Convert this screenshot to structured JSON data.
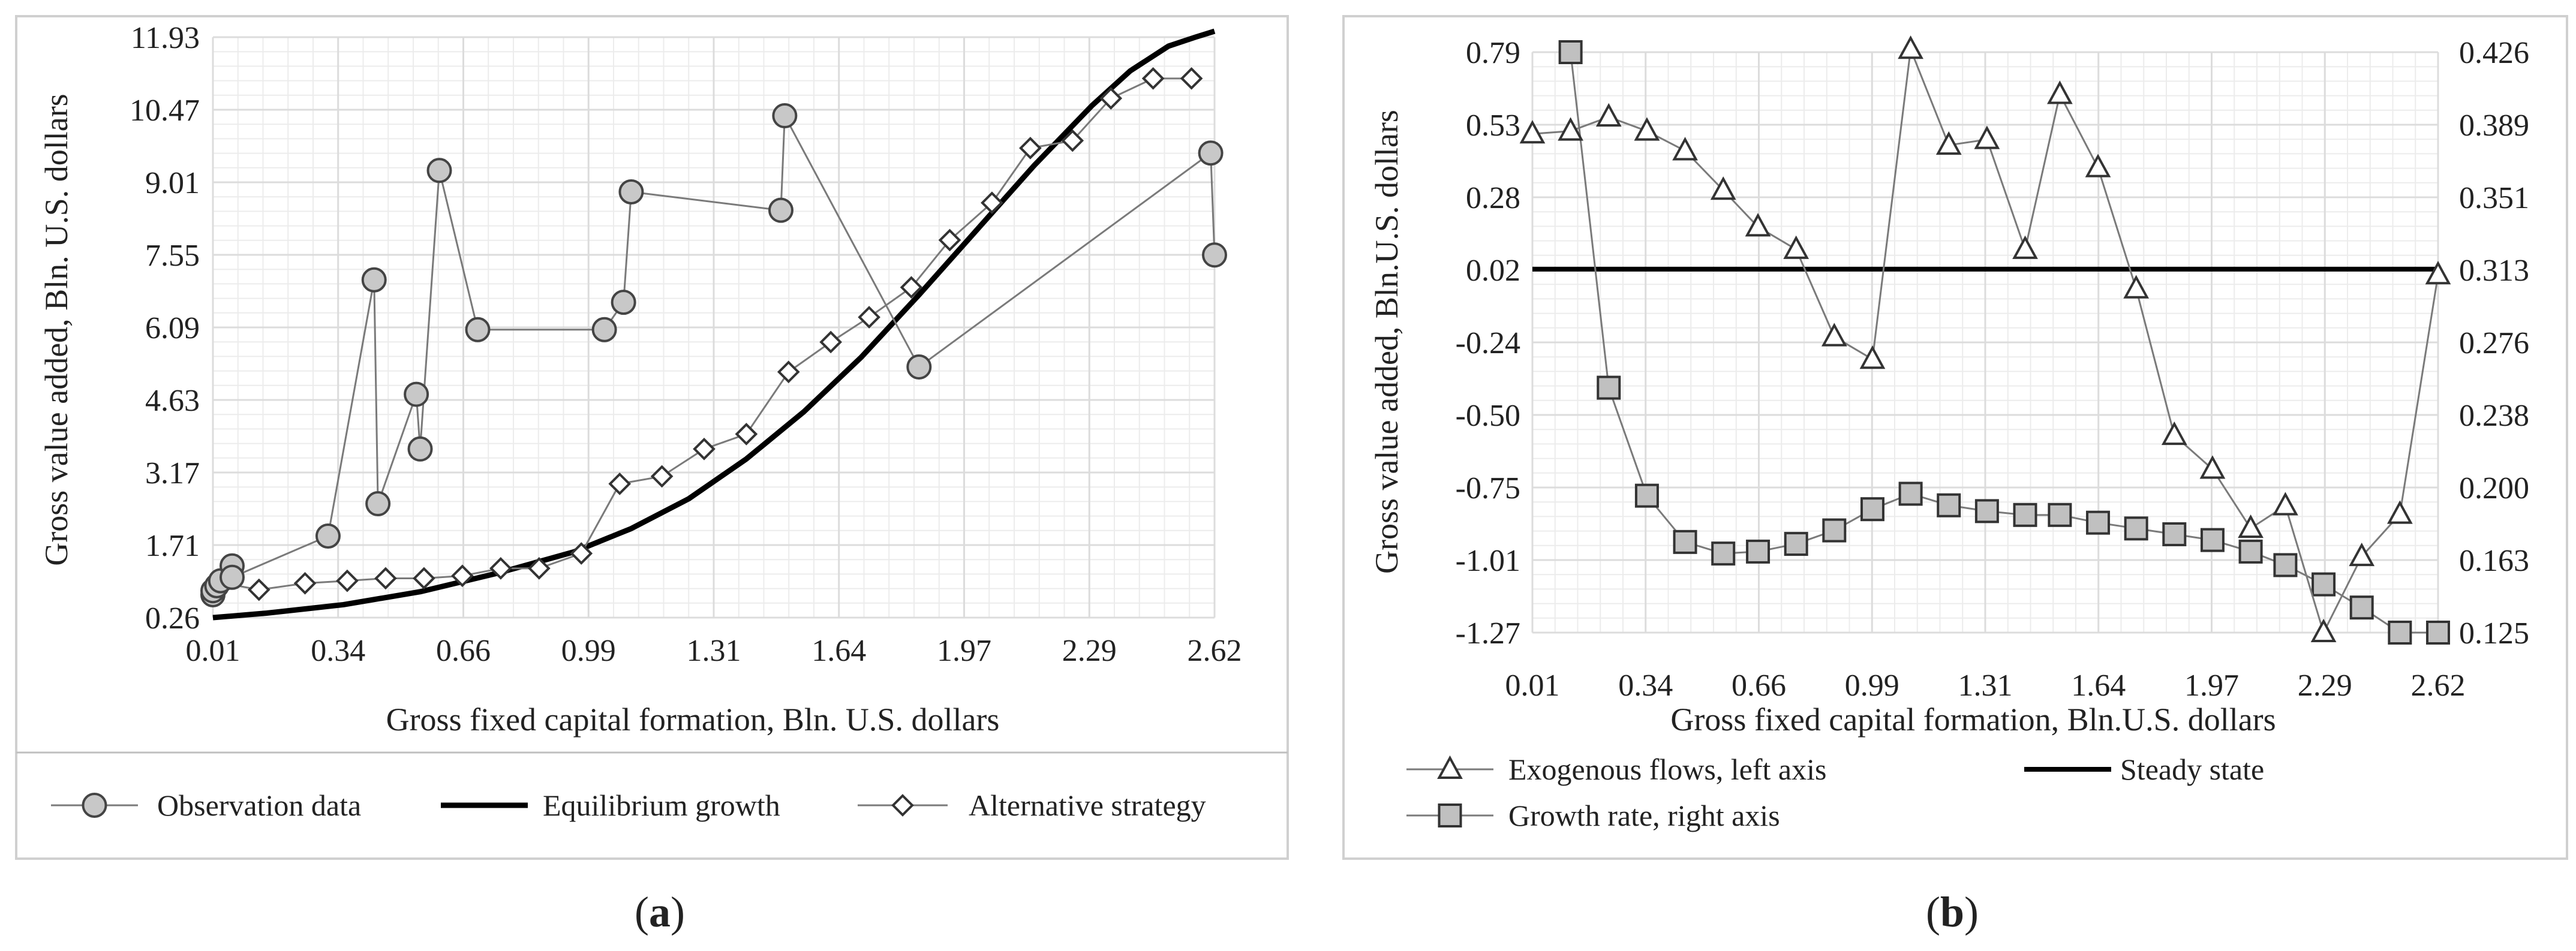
{
  "figure": {
    "caption_a_open": "(",
    "caption_a_letter": "a",
    "caption_a_close": ")",
    "caption_b_open": "(",
    "caption_b_letter": "b",
    "caption_b_close": ")"
  },
  "chart_data": [
    {
      "id": "a",
      "type": "line",
      "title": "",
      "xlabel": "Gross fixed capital formation, Bln. U.S. dollars",
      "ylabel": "Gross value added, Bln. U.S. dollars",
      "x_ticks": [
        "0.01",
        "0.34",
        "0.66",
        "0.99",
        "1.31",
        "1.64",
        "1.97",
        "2.29",
        "2.62"
      ],
      "y_ticks": [
        "0.26",
        "1.71",
        "3.17",
        "4.63",
        "6.09",
        "7.55",
        "9.01",
        "10.47",
        "11.93"
      ],
      "xlim": [
        0.01,
        2.62
      ],
      "ylim": [
        0.26,
        11.93
      ],
      "legend_position": "bottom",
      "series": [
        {
          "name": "Observation data",
          "marker": "circle",
          "x": [
            0.01,
            0.01,
            0.02,
            0.03,
            0.06,
            0.06,
            0.31,
            0.43,
            0.44,
            0.54,
            0.55,
            0.6,
            0.7,
            1.03,
            1.08,
            1.1,
            1.49,
            1.5,
            1.85,
            2.61,
            2.62
          ],
          "y": [
            0.72,
            0.8,
            0.9,
            1.0,
            1.3,
            1.07,
            1.9,
            7.05,
            2.55,
            4.75,
            3.65,
            9.25,
            6.05,
            6.05,
            6.6,
            8.82,
            8.45,
            10.35,
            5.3,
            9.6,
            7.55
          ]
        },
        {
          "name": "Equilibrium growth",
          "marker": "none",
          "x": [
            0.01,
            0.15,
            0.35,
            0.55,
            0.75,
            0.95,
            1.1,
            1.25,
            1.4,
            1.55,
            1.7,
            1.85,
            2.0,
            2.15,
            2.3,
            2.4,
            2.5,
            2.57,
            2.62
          ],
          "y": [
            0.26,
            0.35,
            0.52,
            0.78,
            1.15,
            1.58,
            2.05,
            2.65,
            3.45,
            4.4,
            5.5,
            6.75,
            8.05,
            9.35,
            10.55,
            11.25,
            11.75,
            11.93,
            12.05
          ]
        },
        {
          "name": "Alternative strategy",
          "marker": "diamond",
          "x": [
            0.01,
            0.02,
            0.04,
            0.13,
            0.25,
            0.36,
            0.46,
            0.56,
            0.66,
            0.76,
            0.86,
            0.97,
            1.07,
            1.18,
            1.29,
            1.4,
            1.51,
            1.62,
            1.72,
            1.83,
            1.93,
            2.04,
            2.14,
            2.25,
            2.35,
            2.46,
            2.56
          ],
          "y": [
            0.7,
            0.8,
            0.95,
            0.82,
            0.95,
            1.0,
            1.05,
            1.05,
            1.1,
            1.25,
            1.25,
            1.55,
            2.95,
            3.1,
            3.65,
            3.95,
            5.2,
            5.8,
            6.3,
            6.9,
            7.85,
            8.6,
            9.7,
            9.85,
            10.7,
            11.1,
            11.1
          ]
        }
      ]
    },
    {
      "id": "b",
      "type": "line",
      "title": "",
      "xlabel": "Gross fixed capital formation, Bln.U.S. dollars",
      "ylabel": "Gross value added, Bln.U.S. dollars",
      "x_ticks": [
        "0.01",
        "0.34",
        "0.66",
        "0.99",
        "1.31",
        "1.64",
        "1.97",
        "2.29",
        "2.62"
      ],
      "y_ticks_left": [
        "-1.27",
        "-1.01",
        "-0.75",
        "-0.50",
        "-0.24",
        "0.02",
        "0.28",
        "0.53",
        "0.79"
      ],
      "y_ticks_right": [
        "0.125",
        "0.163",
        "0.200",
        "0.238",
        "0.276",
        "0.313",
        "0.351",
        "0.389",
        "0.426"
      ],
      "xlim": [
        0.01,
        2.62
      ],
      "ylim_left": [
        -1.27,
        0.79
      ],
      "ylim_right": [
        0.125,
        0.426
      ],
      "legend_position": "bottom",
      "series": [
        {
          "name": "Exogenous flows, left axis",
          "axis": "left",
          "marker": "triangle",
          "x": [
            0.01,
            0.12,
            0.23,
            0.34,
            0.45,
            0.56,
            0.66,
            0.77,
            0.88,
            0.99,
            1.1,
            1.21,
            1.32,
            1.43,
            1.53,
            1.64,
            1.75,
            1.86,
            1.97,
            2.08,
            2.18,
            2.29,
            2.4,
            2.51,
            2.62
          ],
          "y": [
            0.5,
            0.51,
            0.56,
            0.51,
            0.44,
            0.3,
            0.17,
            0.09,
            -0.22,
            -0.3,
            0.8,
            0.46,
            0.48,
            0.09,
            0.64,
            0.38,
            -0.05,
            -0.57,
            -0.69,
            -0.9,
            -0.82,
            -1.27,
            -1.0,
            -0.85,
            0.0
          ]
        },
        {
          "name": "Steady state",
          "axis": "left",
          "marker": "none",
          "x": [
            0.01,
            2.62
          ],
          "y": [
            0.02,
            0.02
          ]
        },
        {
          "name": "Growth rate, right axis",
          "axis": "right",
          "marker": "square",
          "x": [
            0.12,
            0.23,
            0.34,
            0.45,
            0.56,
            0.66,
            0.77,
            0.88,
            0.99,
            1.1,
            1.21,
            1.32,
            1.43,
            1.53,
            1.64,
            1.75,
            1.86,
            1.97,
            2.08,
            2.18,
            2.29,
            2.4,
            2.51,
            2.62
          ],
          "y": [
            0.426,
            0.252,
            0.196,
            0.172,
            0.166,
            0.167,
            0.171,
            0.178,
            0.189,
            0.197,
            0.191,
            0.188,
            0.186,
            0.186,
            0.182,
            0.179,
            0.176,
            0.173,
            0.167,
            0.16,
            0.15,
            0.138,
            0.125,
            0.125
          ]
        }
      ]
    }
  ]
}
